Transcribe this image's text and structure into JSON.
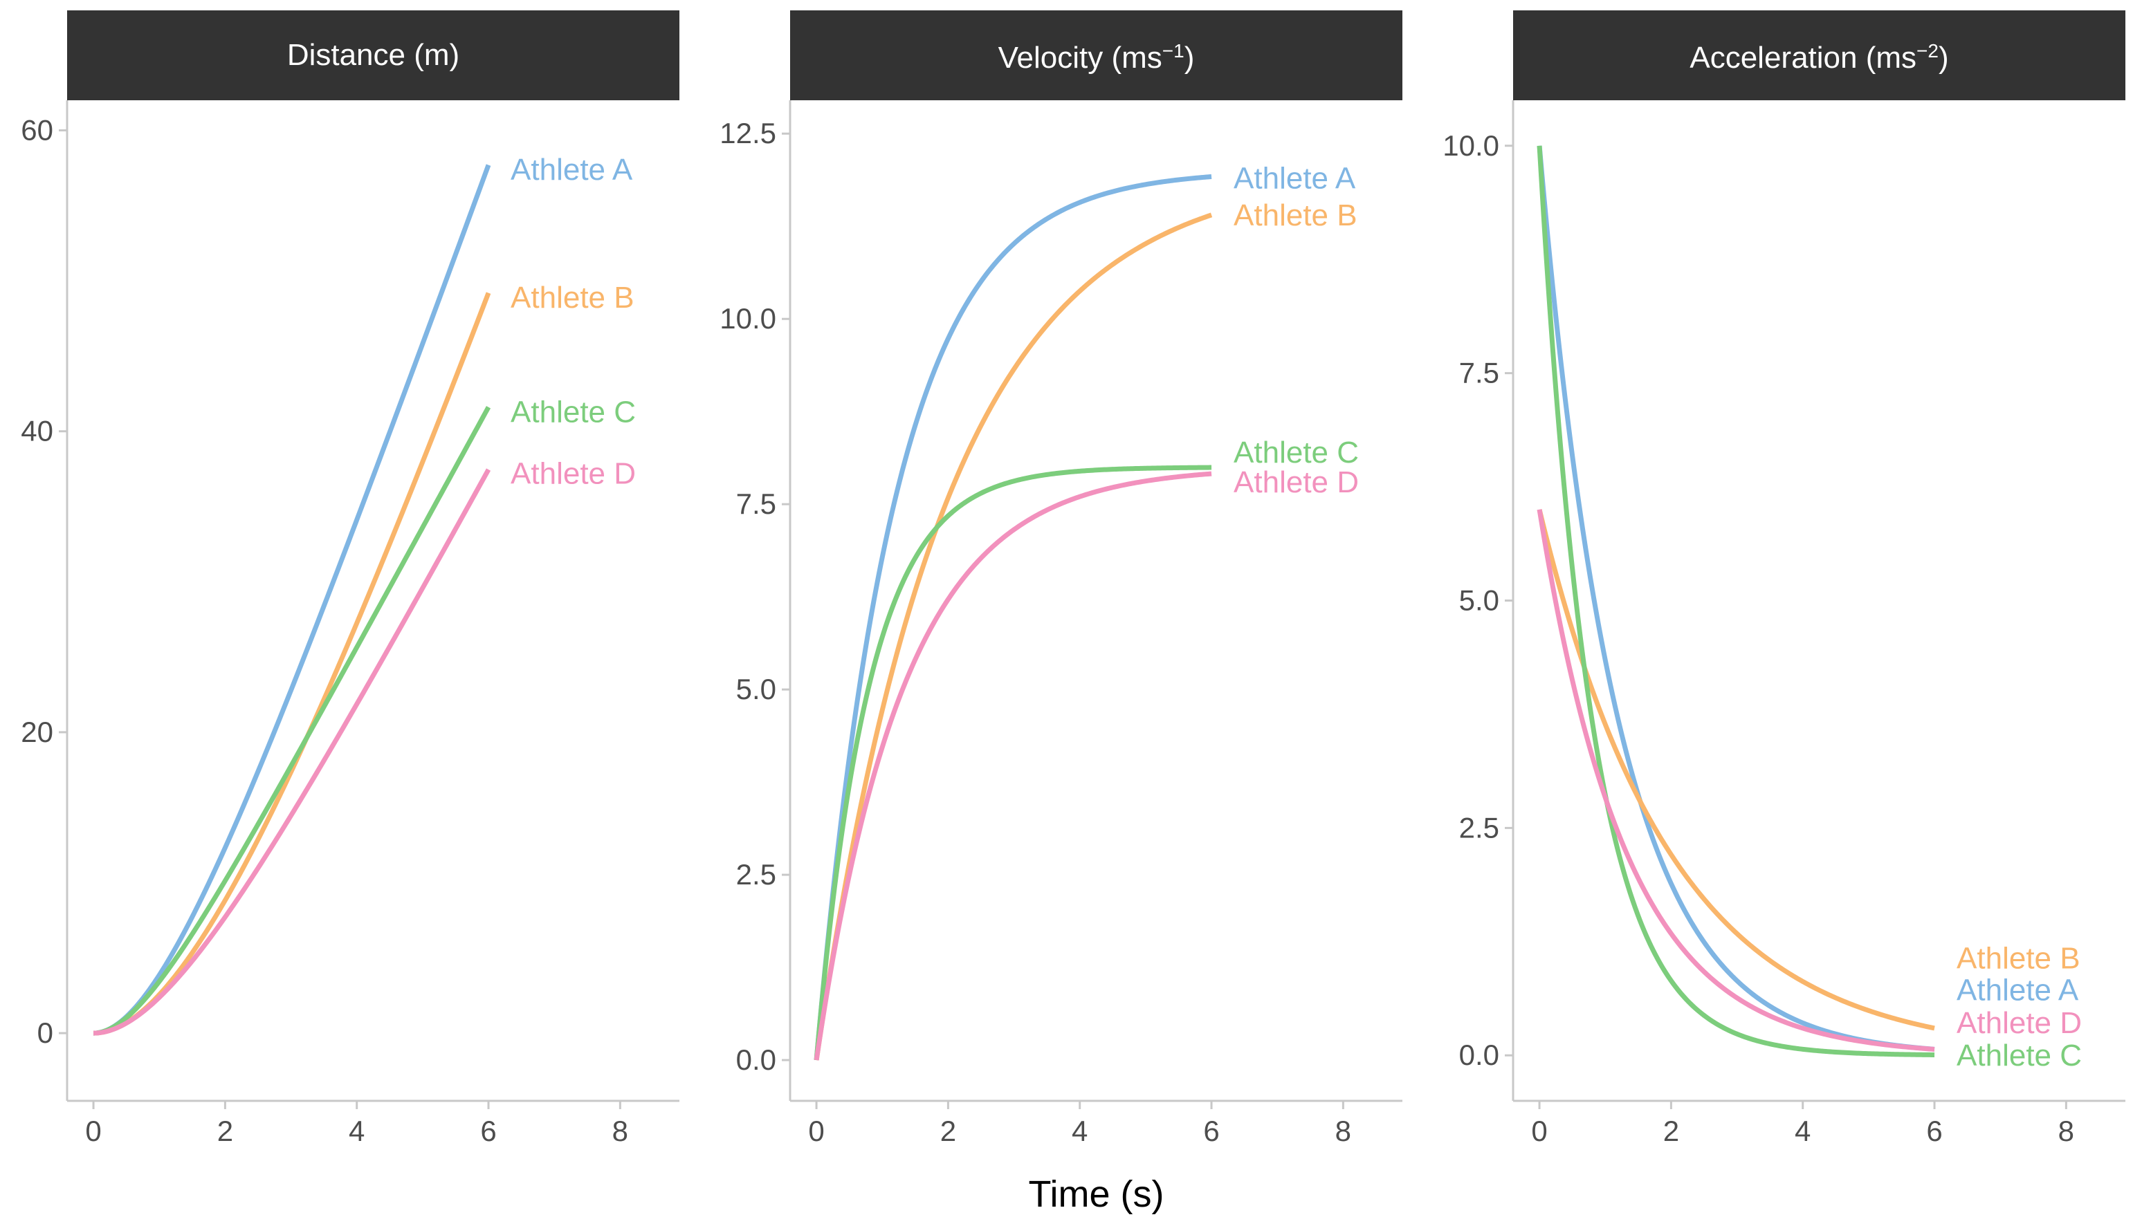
{
  "chart_data": {
    "type": "line",
    "xlabel": "Time (s)",
    "xlim": [
      -0.4,
      8.9
    ],
    "x_ticks": [
      0,
      2,
      4,
      6,
      8
    ],
    "series_colors": {
      "Athlete A": "#7fb5e3",
      "Athlete B": "#f9b56a",
      "Athlete C": "#7ccd7c",
      "Athlete D": "#f291bd"
    },
    "athletes": [
      {
        "name": "Athlete A",
        "v_max": 12.0,
        "tau": 1.2
      },
      {
        "name": "Athlete B",
        "v_max": 12.0,
        "tau": 2.0
      },
      {
        "name": "Athlete C",
        "v_max": 8.0,
        "tau": 0.8
      },
      {
        "name": "Athlete D",
        "v_max": 8.0,
        "tau": 1.333
      }
    ],
    "x_range_data": [
      0,
      6
    ],
    "panels": [
      {
        "title": "Distance (m)",
        "title_main": "Distance (m)",
        "title_sup": "",
        "title_tail": "",
        "quantity": "distance",
        "ylim": [
          -4.5,
          62
        ],
        "y_ticks": [
          "0",
          "20",
          "40",
          "60"
        ],
        "y_tick_values": [
          0,
          20,
          40,
          60
        ],
        "label_order": [
          "Athlete A",
          "Athlete B",
          "Athlete C",
          "Athlete D"
        ],
        "label_y_values": [
          57.4,
          48.9,
          41.3,
          37.2
        ],
        "end_values": {
          "Athlete A": 57.4,
          "Athlete B": 49.0,
          "Athlete C": 41.4,
          "Athlete D": 37.3
        }
      },
      {
        "title": "Velocity (ms-1)",
        "title_main": "Velocity (ms",
        "title_sup": "−1",
        "title_tail": ")",
        "quantity": "velocity",
        "ylim": [
          -0.55,
          12.95
        ],
        "y_ticks": [
          "0.0",
          "2.5",
          "5.0",
          "7.5",
          "10.0",
          "12.5"
        ],
        "y_tick_values": [
          0,
          2.5,
          5,
          7.5,
          10,
          12.5
        ],
        "label_order": [
          "Athlete A",
          "Athlete B",
          "Athlete C",
          "Athlete D"
        ],
        "label_y_values": [
          11.9,
          11.4,
          8.2,
          7.8
        ],
        "end_values": {
          "Athlete A": 11.92,
          "Athlete B": 11.4,
          "Athlete C": 8.0,
          "Athlete D": 7.93
        }
      },
      {
        "title": "Acceleration (ms-2)",
        "title_main": "Acceleration (ms",
        "title_sup": "−2",
        "title_tail": ")",
        "quantity": "acceleration",
        "ylim": [
          -0.5,
          10.5
        ],
        "y_ticks": [
          "0.0",
          "2.5",
          "5.0",
          "7.5",
          "10.0"
        ],
        "y_tick_values": [
          0,
          2.5,
          5,
          7.5,
          10
        ],
        "label_order": [
          "Athlete B",
          "Athlete A",
          "Athlete D",
          "Athlete C"
        ],
        "label_y_values": [
          1.07,
          0.72,
          0.36,
          0.0
        ],
        "end_values": {
          "Athlete A": 0.07,
          "Athlete B": 0.3,
          "Athlete C": 0.0,
          "Athlete D": 0.07
        }
      }
    ]
  }
}
